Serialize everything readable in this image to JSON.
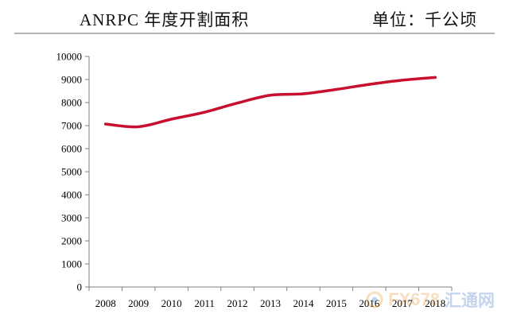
{
  "header": {
    "title": "ANRPC 年度开割面积",
    "unit": "单位：千公顷"
  },
  "watermark": {
    "text": "FX678",
    "text_cn": "汇通网"
  },
  "chart_data": {
    "type": "line",
    "title": "ANRPC 年度开割面积",
    "xlabel": "",
    "ylabel": "",
    "x": [
      "2008",
      "2009",
      "2010",
      "2011",
      "2012",
      "2013",
      "2014",
      "2015",
      "2016",
      "2017",
      "2018"
    ],
    "yticks": [
      0,
      1000,
      2000,
      3000,
      4000,
      5000,
      6000,
      7000,
      8000,
      9000,
      10000
    ],
    "ylim": [
      0,
      10000
    ],
    "grid": false,
    "legend": "none",
    "series": [
      {
        "color": "#c8102e",
        "values": [
          7070,
          6950,
          7280,
          7580,
          7980,
          8320,
          8380,
          8570,
          8790,
          8970,
          9090
        ]
      }
    ]
  }
}
